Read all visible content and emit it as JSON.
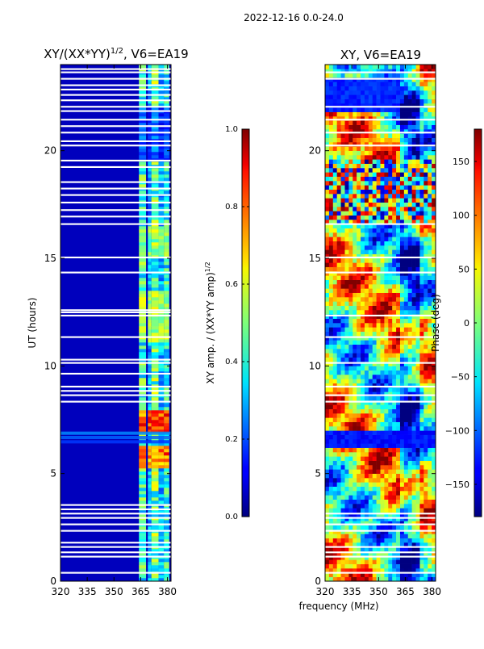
{
  "figure": {
    "suptitle": "2022-12-16 0.0-24.0",
    "shared_xlabel": "frequency (MHz)"
  },
  "chart_data": [
    {
      "type": "heatmap",
      "title": "XY/(XX*YY)^1/2, V6=EA19",
      "title_main": "XY/(XX*YY)",
      "title_sup": "1/2",
      "title_tail": ", V6=EA19",
      "xlabel": "",
      "ylabel": "UT (hours)",
      "xlim": [
        320,
        382
      ],
      "ylim": [
        0,
        24
      ],
      "xticks": [
        320,
        335,
        350,
        365,
        380
      ],
      "yticks": [
        0,
        5,
        10,
        15,
        20
      ],
      "colorbar": {
        "label": "XY amp. / (XX*YY amp)^1/2",
        "label_main": "XY amp. / (XX*YY amp)",
        "label_sup": "1/2",
        "range": [
          0.0,
          1.0
        ],
        "ticks": [
          "0.0",
          "0.2",
          "0.4",
          "0.6",
          "0.8",
          "1.0"
        ],
        "colormap": "jet"
      },
      "background_level": 0.06,
      "channel_bands_mhz": [
        [
          364,
          368,
          0.45
        ],
        [
          369,
          371,
          0.3
        ],
        [
          371,
          375,
          0.5
        ],
        [
          375,
          378,
          0.32
        ],
        [
          378,
          381,
          0.42
        ]
      ],
      "bright_intervals_ut": [
        [
          6.8,
          7.9,
          0.88
        ],
        [
          5.7,
          6.2,
          0.85
        ],
        [
          5.2,
          5.6,
          0.78
        ],
        [
          11.0,
          13.5,
          0.6
        ],
        [
          15.0,
          16.4,
          0.55
        ]
      ],
      "blank_rows_ut": [
        0.35,
        1.1,
        1.3,
        1.55,
        1.75,
        2.3,
        2.6,
        2.9,
        3.1,
        3.3,
        3.5,
        8.3,
        8.6,
        8.8,
        9.0,
        9.6,
        10.1,
        10.25,
        11.3,
        12.3,
        12.45,
        12.55,
        14.3,
        15.0,
        16.55,
        16.9,
        17.2,
        17.55,
        17.9,
        18.2,
        18.5,
        19.2,
        19.5,
        20.2,
        20.4,
        20.8,
        21.1,
        21.4,
        21.8,
        22.0,
        22.3,
        22.55,
        22.8,
        23.0,
        23.3,
        23.6,
        23.75
      ]
    },
    {
      "type": "heatmap",
      "title": "XY, V6=EA19",
      "xlabel": "",
      "ylabel": "",
      "xlim": [
        320,
        382
      ],
      "ylim": [
        0,
        24
      ],
      "xticks": [
        320,
        335,
        350,
        365,
        380
      ],
      "yticks": [
        0,
        5,
        10,
        15,
        20
      ],
      "colorbar": {
        "label": "Phase (deg)",
        "range": [
          -180,
          180
        ],
        "ticks": [
          "−150",
          "−100",
          "−50",
          "0",
          "50",
          "100",
          "150"
        ],
        "tick_values": [
          -150,
          -100,
          -50,
          0,
          50,
          100,
          150
        ],
        "colormap": "jet"
      },
      "noise_interval_ut": [
        16.6,
        19.5
      ],
      "blue_band_ut": [
        6.2,
        6.9
      ],
      "blue_block_ut": [
        21.8,
        23.3
      ],
      "blank_rows_ut": [
        0.35,
        1.1,
        1.3,
        1.55,
        2.3,
        2.6,
        2.9,
        3.1,
        8.3,
        8.6,
        9.0,
        10.1,
        11.3,
        12.3,
        14.3,
        15.0,
        16.55,
        20.2,
        20.8,
        21.4,
        22.0,
        23.3,
        23.6
      ]
    }
  ]
}
